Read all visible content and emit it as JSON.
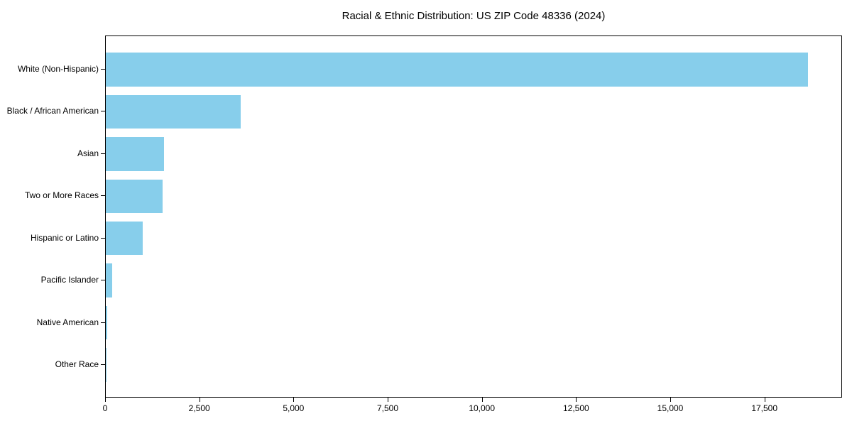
{
  "page": {
    "background_color": "#ffffff",
    "text_color": "#000000",
    "spine_color": "#000000"
  },
  "chart_data": {
    "type": "bar",
    "orientation": "horizontal",
    "title": "Racial & Ethnic Distribution: US ZIP Code 48336 (2024)",
    "xlabel": "",
    "ylabel": "",
    "grid": false,
    "legend": null,
    "bar_color": "#87CEEB",
    "categories": [
      "White (Non-Hispanic)",
      "Black / African American",
      "Asian",
      "Two or More Races",
      "Hispanic or Latino",
      "Pacific Islander",
      "Native American",
      "Other Race"
    ],
    "values": [
      18630,
      3580,
      1550,
      1510,
      980,
      170,
      40,
      10
    ],
    "xlim": [
      0,
      19560
    ],
    "x_ticks": [
      0,
      2500,
      5000,
      7500,
      10000,
      12500,
      15000,
      17500
    ],
    "x_tick_labels": [
      "0",
      "2,500",
      "5,000",
      "7,500",
      "10,000",
      "12,500",
      "15,000",
      "17,500"
    ]
  }
}
